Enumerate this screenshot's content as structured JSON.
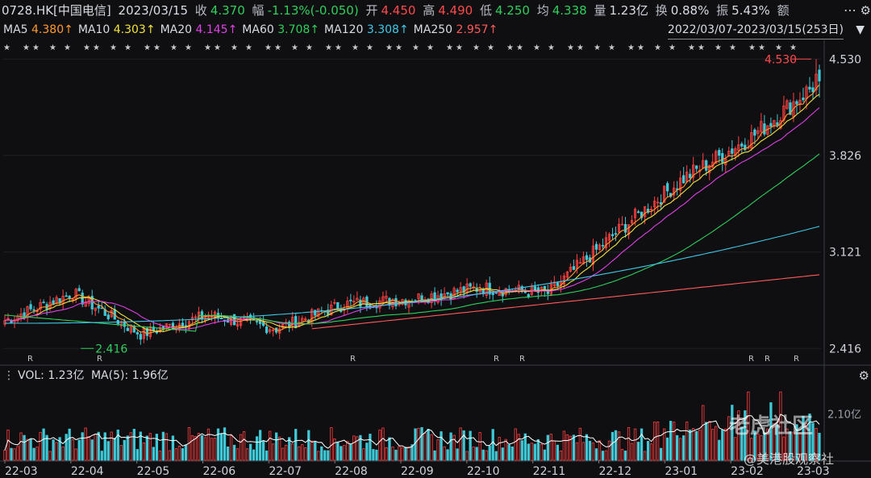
{
  "quote": {
    "symbol": "0728.HK[中国电信]",
    "date": "2023/03/15",
    "close_label": "收",
    "close": "4.370",
    "change_label": "幅",
    "change": "-1.13%(-0.050)",
    "open_label": "开",
    "open": "4.450",
    "high_label": "高",
    "high": "4.490",
    "low_label": "低",
    "low": "4.250",
    "avg_label": "均",
    "avg": "4.338",
    "volume_label": "量",
    "volume": "1.23亿",
    "turnover_label": "换",
    "turnover": "0.88%",
    "amplitude_label": "振",
    "amplitude": "5.43%",
    "amount_label": "额"
  },
  "ma": [
    {
      "name": "MA5",
      "value": "4.380↑",
      "color": "#ff9a2e"
    },
    {
      "name": "MA10",
      "value": "4.303↑",
      "color": "#f2e33a"
    },
    {
      "name": "MA20",
      "value": "4.145↑",
      "color": "#e040e6"
    },
    {
      "name": "MA60",
      "value": "3.708↑",
      "color": "#2ecf5b"
    },
    {
      "name": "MA120",
      "value": "3.308↑",
      "color": "#3ec9e6"
    },
    {
      "name": "MA250",
      "value": "2.957↑",
      "color": "#ff5a5a"
    }
  ],
  "range": "2022/03/07-2023/03/15(253日)",
  "volume_header": {
    "vol_label": "VOL: 1.23亿",
    "ma_label": "MA(5): 1.96亿"
  },
  "watermark": {
    "brand": "老虎社区",
    "tag": "@美港股观察社"
  },
  "chart_data": {
    "type": "candlestick",
    "y_ticks": [
      "4.530",
      "3.826",
      "3.121",
      "2.416"
    ],
    "y_range": [
      2.416,
      4.53
    ],
    "high_marker": "4.530",
    "low_marker": "2.416",
    "volume_ticks": [
      "2.10亿"
    ],
    "x_ticks": [
      "22-03",
      "22-04",
      "22-05",
      "22-06",
      "22-07",
      "22-08",
      "22-09",
      "22-10",
      "22-11",
      "22-12",
      "23-01",
      "23-02",
      "23-03"
    ],
    "colors": {
      "up": "#ff4040",
      "down": "#3fc8d6",
      "volume_line": "#ffffff"
    },
    "series_lines": [
      "MA5",
      "MA10",
      "MA20",
      "MA60",
      "MA120",
      "MA250"
    ],
    "anchors": [
      {
        "month": "22-03",
        "price": 2.62
      },
      {
        "month": "22-04",
        "price": 2.82
      },
      {
        "month": "22-05",
        "price": 2.52
      },
      {
        "month": "22-06",
        "price": 2.66
      },
      {
        "month": "22-07",
        "price": 2.56
      },
      {
        "month": "22-08",
        "price": 2.74
      },
      {
        "month": "22-09",
        "price": 2.78
      },
      {
        "month": "22-10",
        "price": 2.86
      },
      {
        "month": "22-11",
        "price": 2.82
      },
      {
        "month": "22-12",
        "price": 3.26
      },
      {
        "month": "23-01",
        "price": 3.66
      },
      {
        "month": "23-02",
        "price": 3.96
      },
      {
        "month": "23-03",
        "price": 4.37
      }
    ]
  }
}
